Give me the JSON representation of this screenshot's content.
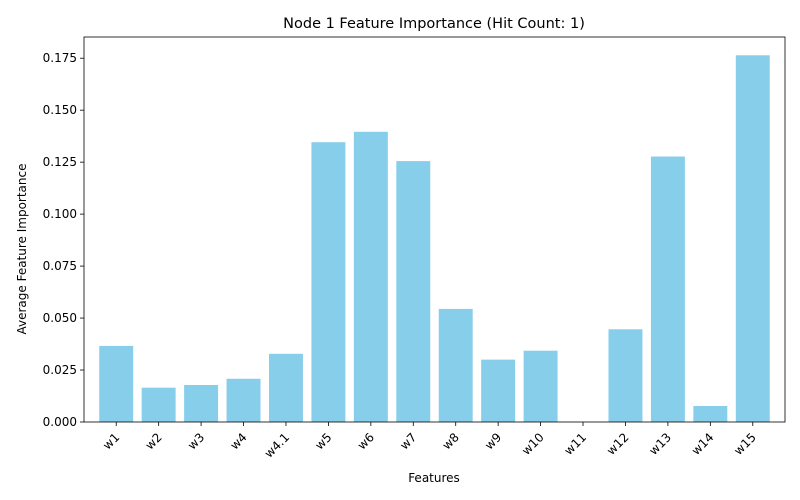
{
  "chart_data": {
    "type": "bar",
    "title": "Node 1 Feature Importance (Hit Count: 1)",
    "xlabel": "Features",
    "ylabel": "Average Feature Importance",
    "categories": [
      "w1",
      "w2",
      "w3",
      "w4",
      "w4.1",
      "w5",
      "w6",
      "w7",
      "w8",
      "w9",
      "w10",
      "w11",
      "w12",
      "w13",
      "w14",
      "w15"
    ],
    "values": [
      0.0366,
      0.0165,
      0.0178,
      0.0208,
      0.0328,
      0.1346,
      0.1396,
      0.1255,
      0.0544,
      0.03,
      0.0343,
      0.0,
      0.0446,
      0.1277,
      0.0077,
      0.1764
    ],
    "ylim": [
      0,
      0.1852
    ],
    "yticks": [
      "0.000",
      "0.025",
      "0.050",
      "0.075",
      "0.100",
      "0.125",
      "0.150",
      "0.175"
    ],
    "bar_color": "#87CEEB",
    "grid": false,
    "legend": "none"
  }
}
